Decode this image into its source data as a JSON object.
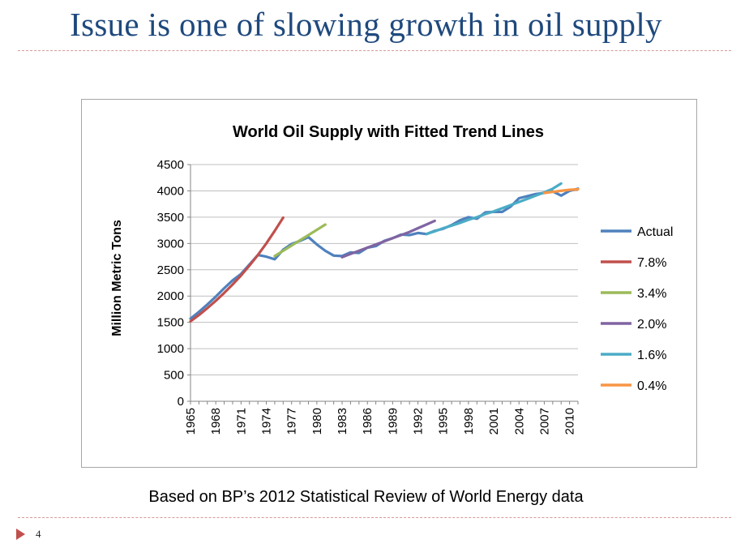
{
  "slide": {
    "title": "Issue is one of slowing growth in oil supply",
    "source": "Based on BP’s 2012 Statistical Review of World Energy data",
    "page_number": "4"
  },
  "chart_data": {
    "type": "line",
    "title": "World Oil Supply with Fitted Trend Lines",
    "ylabel": "Million Metric Tons",
    "xlabel": "",
    "ylim": [
      0,
      4500
    ],
    "yticks": [
      0,
      500,
      1000,
      1500,
      2000,
      2500,
      3000,
      3500,
      4000,
      4500
    ],
    "xlim": [
      1965,
      2011
    ],
    "xticks": [
      1965,
      1968,
      1971,
      1974,
      1977,
      1980,
      1983,
      1986,
      1989,
      1992,
      1995,
      1998,
      2001,
      2004,
      2007,
      2010
    ],
    "grid": "horizontal",
    "legend_position": "right",
    "series": [
      {
        "name": "Actual",
        "color": "#4f81bd",
        "x": [
          1965,
          1966,
          1967,
          1968,
          1969,
          1970,
          1971,
          1972,
          1973,
          1974,
          1975,
          1976,
          1977,
          1978,
          1979,
          1980,
          1981,
          1982,
          1983,
          1984,
          1985,
          1986,
          1987,
          1988,
          1989,
          1990,
          1991,
          1992,
          1993,
          1994,
          1995,
          1996,
          1997,
          1998,
          1999,
          2000,
          2001,
          2002,
          2003,
          2004,
          2005,
          2006,
          2007,
          2008,
          2009,
          2010,
          2011
        ],
        "y": [
          1570,
          1700,
          1840,
          1990,
          2150,
          2300,
          2420,
          2600,
          2780,
          2750,
          2700,
          2880,
          2990,
          3050,
          3120,
          2980,
          2860,
          2770,
          2760,
          2830,
          2820,
          2920,
          2950,
          3050,
          3100,
          3170,
          3160,
          3200,
          3180,
          3240,
          3280,
          3350,
          3440,
          3500,
          3470,
          3590,
          3600,
          3600,
          3700,
          3860,
          3900,
          3940,
          3960,
          3990,
          3910,
          4000,
          4040
        ]
      },
      {
        "name": "7.8%",
        "color": "#c0504d",
        "x": [
          1965,
          1966,
          1967,
          1968,
          1969,
          1970,
          1971,
          1972,
          1973,
          1974,
          1975,
          1976
        ],
        "y": [
          1520,
          1640,
          1770,
          1910,
          2060,
          2220,
          2390,
          2580,
          2780,
          3000,
          3240,
          3490
        ]
      },
      {
        "name": "3.4%",
        "color": "#9bbb59",
        "x": [
          1975,
          1976,
          1977,
          1978,
          1979,
          1980,
          1981
        ],
        "y": [
          2760,
          2860,
          2960,
          3060,
          3160,
          3260,
          3360
        ]
      },
      {
        "name": "2.0%",
        "color": "#8064a2",
        "x": [
          1983,
          1984,
          1985,
          1986,
          1987,
          1988,
          1989,
          1990,
          1991,
          1992,
          1993,
          1994
        ],
        "y": [
          2740,
          2800,
          2860,
          2920,
          2980,
          3040,
          3100,
          3160,
          3220,
          3290,
          3360,
          3430
        ]
      },
      {
        "name": "1.6%",
        "color": "#4bacc6",
        "x": [
          1993,
          1994,
          1995,
          1996,
          1997,
          1998,
          1999,
          2000,
          2001,
          2002,
          2003,
          2004,
          2005,
          2006,
          2007,
          2008,
          2009
        ],
        "y": [
          3180,
          3230,
          3290,
          3340,
          3390,
          3450,
          3500,
          3560,
          3610,
          3670,
          3730,
          3790,
          3850,
          3910,
          3970,
          4040,
          4140
        ]
      },
      {
        "name": "0.4%",
        "color": "#f79646",
        "x": [
          2007,
          2008,
          2009,
          2010,
          2011
        ],
        "y": [
          3960,
          3980,
          4000,
          4020,
          4030
        ]
      }
    ]
  }
}
